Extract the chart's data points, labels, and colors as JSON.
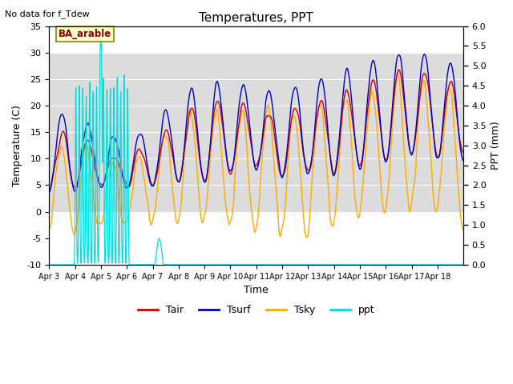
{
  "title": "Temperatures, PPT",
  "subtitle": "No data for f_Tdew",
  "box_label": "BA_arable",
  "xlabel": "Time",
  "ylabel_left": "Temperature (C)",
  "ylabel_right": "PPT (mm)",
  "ylim_left": [
    -10,
    35
  ],
  "ylim_right": [
    0.0,
    6.0
  ],
  "yticks_left": [
    -10,
    -5,
    0,
    5,
    10,
    15,
    20,
    25,
    30,
    35
  ],
  "yticks_right": [
    0.0,
    0.5,
    1.0,
    1.5,
    2.0,
    2.5,
    3.0,
    3.5,
    4.0,
    4.5,
    5.0,
    5.5,
    6.0
  ],
  "xtick_labels": [
    "Apr 3",
    "Apr 4",
    "Apr 5",
    "Apr 6",
    "Apr 7",
    "Apr 8",
    "Apr 9",
    "Apr 10",
    "Apr 11",
    "Apr 12",
    "Apr 13",
    "Apr 14",
    "Apr 15",
    "Apr 16",
    "Apr 17",
    "Apr 18"
  ],
  "colors": {
    "Tair": "#cc0000",
    "Tsurf": "#0000bb",
    "Tsky": "#ffaa00",
    "ppt": "#00dddd",
    "background_band": "#dcdcdc",
    "box_face": "#ffffcc",
    "box_edge": "#999933"
  },
  "legend_labels": [
    "Tair",
    "Tsurf",
    "Tsky",
    "ppt"
  ],
  "n_points": 1440
}
